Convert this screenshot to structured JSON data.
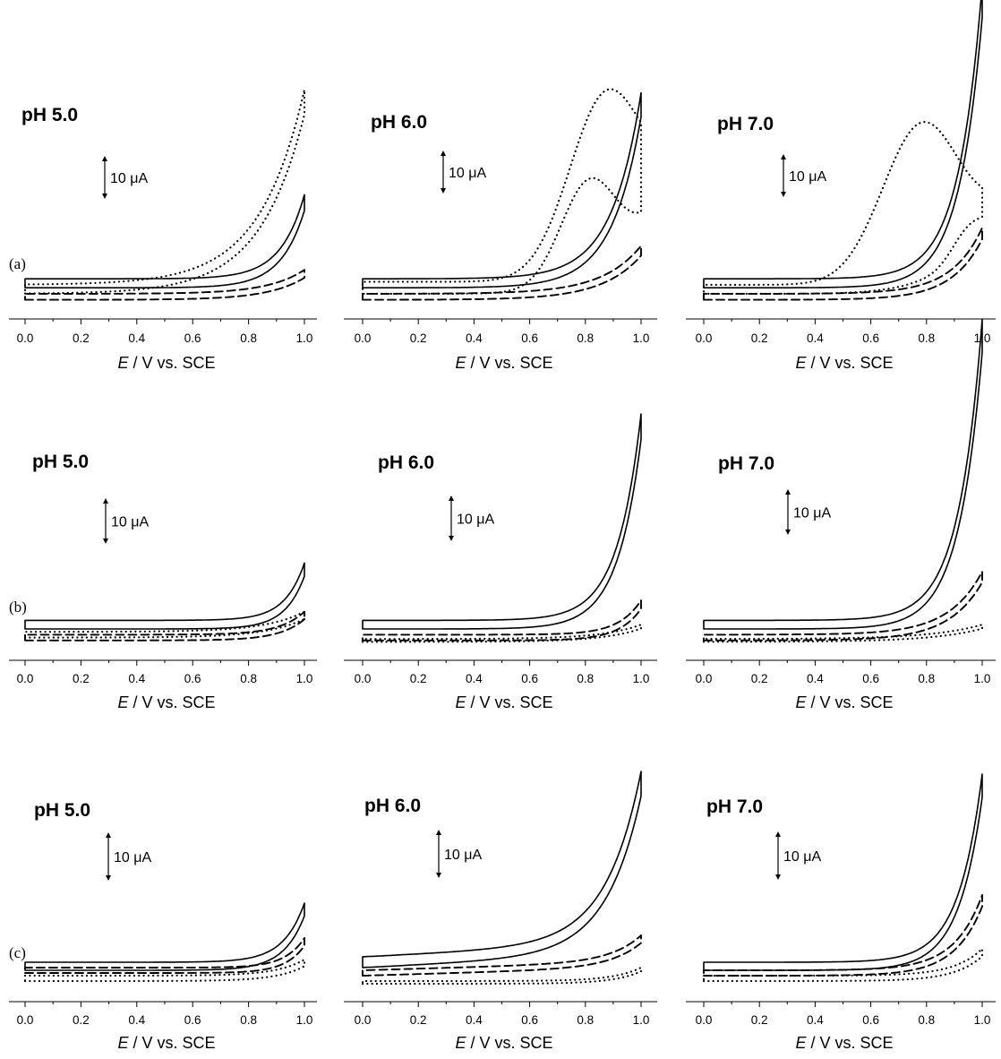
{
  "panels_meta": {
    "x_ticks": [
      "0.0",
      "0.2",
      "0.4",
      "0.6",
      "0.8",
      "1.0"
    ],
    "xlabel_prefix": "E",
    "xlabel_suffix": " / V vs. SCE",
    "scale_text": "10 μA",
    "row_labels": [
      "(a)",
      "(b)",
      "(c)"
    ]
  },
  "chart_data": [
    {
      "type": "line",
      "title": "pH 5.0",
      "row": "(a)",
      "xlabel": "E / V vs. SCE",
      "xlim": [
        0.0,
        1.0
      ],
      "scalebar": "10 μA",
      "grid": false,
      "series": [
        {
          "style": "dotted",
          "base": 3,
          "amp": 65,
          "tau": 0.16,
          "sep": 3
        },
        {
          "style": "solid",
          "base": 5,
          "amp": 28,
          "tau": 0.085,
          "sep": 3
        },
        {
          "style": "dashed",
          "base": 1,
          "amp": 8,
          "tau": 0.13,
          "sep": 2
        }
      ]
    },
    {
      "type": "line",
      "title": "pH 6.0",
      "row": "(a)",
      "xlabel": "E / V vs. SCE",
      "xlim": [
        0.0,
        1.0
      ],
      "scalebar": "10 μA",
      "grid": false,
      "series": [
        {
          "style": "dotted",
          "peak": true,
          "base": 3,
          "sep": 4,
          "fwd": {
            "mu": 0.81,
            "sig": 0.1,
            "h": 32
          },
          "rev": {
            "mu": 0.87,
            "sig": 0.13,
            "h": 55
          },
          "end": 22
        },
        {
          "style": "solid",
          "base": 5,
          "amp": 62,
          "tau": 0.105,
          "sep": 3
        },
        {
          "style": "dashed",
          "base": 1,
          "amp": 16,
          "tau": 0.14,
          "sep": 2
        }
      ]
    },
    {
      "type": "line",
      "title": "pH 7.0",
      "row": "(a)",
      "xlabel": "E / V vs. SCE",
      "xlim": [
        0.0,
        1.0
      ],
      "scalebar": "10 μA",
      "grid": false,
      "series": [
        {
          "style": "dotted",
          "peak": true,
          "base": 3,
          "sep": 3,
          "fwd": {
            "mu": 0.95,
            "sig": 0.06,
            "h": 8
          },
          "rev": {
            "mu": 0.78,
            "sig": 0.14,
            "h": 50
          },
          "end": 20
        },
        {
          "style": "solid",
          "base": 5,
          "amp": 98,
          "tau": 0.085,
          "sep": 3
        },
        {
          "style": "dashed",
          "base": 1,
          "amp": 22,
          "tau": 0.11,
          "sep": 2
        }
      ]
    },
    {
      "type": "line",
      "title": "pH 5.0",
      "row": "(b)",
      "xlabel": "E / V vs. SCE",
      "xlim": [
        0.0,
        1.0
      ],
      "scalebar": "10 μA",
      "grid": false,
      "series": [
        {
          "style": "solid",
          "base": 5,
          "amp": 20,
          "tau": 0.07,
          "sep": 3
        },
        {
          "style": "dashed",
          "base": 1,
          "amp": 8,
          "tau": 0.09,
          "sep": 2
        },
        {
          "style": "dotted",
          "base": 2,
          "amp": 7,
          "tau": 0.14,
          "sep": 2
        }
      ]
    },
    {
      "type": "line",
      "title": "pH 6.0",
      "row": "(b)",
      "xlabel": "E / V vs. SCE",
      "xlim": [
        0.0,
        1.0
      ],
      "scalebar": "10 μA",
      "grid": false,
      "series": [
        {
          "style": "solid",
          "base": 5,
          "amp": 72,
          "tau": 0.085,
          "sep": 3
        },
        {
          "style": "dashed",
          "base": 1,
          "amp": 12,
          "tau": 0.08,
          "sep": 2
        },
        {
          "style": "dotted",
          "base": 0.5,
          "amp": 5,
          "tau": 0.14,
          "sep": 1
        }
      ]
    },
    {
      "type": "line",
      "title": "pH 7.0",
      "row": "(b)",
      "xlabel": "E / V vs. SCE",
      "xlim": [
        0.0,
        1.0
      ],
      "scalebar": "10 μA",
      "grid": false,
      "series": [
        {
          "style": "solid",
          "base": 5,
          "amp": 105,
          "tau": 0.085,
          "sep": 3
        },
        {
          "style": "dashed",
          "base": 1,
          "amp": 22,
          "tau": 0.12,
          "sep": 2
        },
        {
          "style": "dotted",
          "base": 0.5,
          "amp": 5,
          "tau": 0.18,
          "sep": 1
        }
      ]
    },
    {
      "type": "line",
      "title": "pH 5.0",
      "row": "(c)",
      "xlabel": "E / V vs. SCE",
      "xlim": [
        0.0,
        1.0
      ],
      "scalebar": "10 μA",
      "grid": false,
      "series": [
        {
          "style": "solid",
          "base": 5,
          "amp": 22,
          "tau": 0.075,
          "sep": 3
        },
        {
          "style": "dashed",
          "base": 4,
          "amp": 11,
          "tau": 0.07,
          "sep": 2
        },
        {
          "style": "dotted",
          "base": 1,
          "amp": 6,
          "tau": 0.1,
          "sep": 2
        }
      ]
    },
    {
      "type": "line",
      "title": "pH 6.0",
      "row": "(c)",
      "xlabel": "E / V vs. SCE",
      "xlim": [
        0.0,
        1.0
      ],
      "scalebar": "10 μA",
      "grid": false,
      "series": [
        {
          "style": "solid",
          "base": 6,
          "amp": 64,
          "tau": 0.125,
          "sep": 4,
          "slope": 5
        },
        {
          "style": "dashed",
          "base": 3,
          "amp": 10,
          "tau": 0.11,
          "sep": 2,
          "slope": 3
        },
        {
          "style": "dotted",
          "base": 0,
          "amp": 5,
          "tau": 0.1,
          "sep": 1
        }
      ]
    },
    {
      "type": "line",
      "title": "pH 7.0",
      "row": "(c)",
      "xlabel": "E / V vs. SCE",
      "xlim": [
        0.0,
        1.0
      ],
      "scalebar": "10 μA",
      "grid": false,
      "series": [
        {
          "style": "solid",
          "base": 5,
          "amp": 70,
          "tau": 0.085,
          "sep": 3
        },
        {
          "style": "dashed",
          "base": 3,
          "amp": 28,
          "tau": 0.1,
          "sep": 2
        },
        {
          "style": "dotted",
          "base": 1,
          "amp": 10,
          "tau": 0.1,
          "sep": 2
        }
      ]
    }
  ]
}
